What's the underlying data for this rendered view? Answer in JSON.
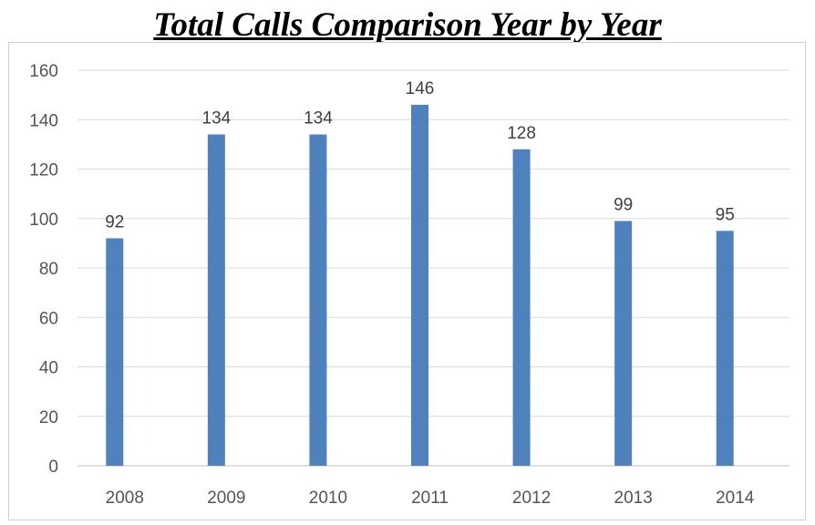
{
  "chart_data": {
    "type": "bar",
    "title": "Total Calls Comparison Year by Year",
    "categories": [
      "2008",
      "2009",
      "2010",
      "2011",
      "2012",
      "2013",
      "2014"
    ],
    "series": [
      {
        "values": [
          92,
          134,
          134,
          146,
          128,
          99,
          95
        ]
      }
    ],
    "xlabel": "",
    "ylabel": "",
    "ylim": [
      0,
      160
    ],
    "yticks": [
      0,
      20,
      40,
      60,
      80,
      100,
      120,
      140,
      160
    ],
    "grid": true,
    "legend": "none",
    "data_labels": true,
    "colors": {
      "bar": "#4f81bd",
      "grid": "#d9d9d9",
      "axis": "#bfbfbf"
    }
  }
}
